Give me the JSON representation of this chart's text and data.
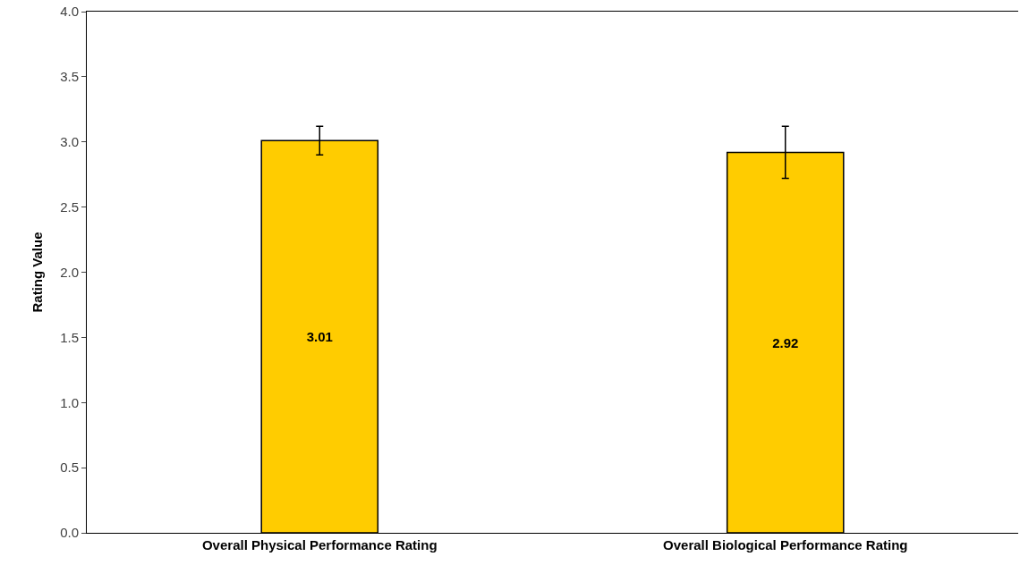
{
  "chart_data": {
    "type": "bar",
    "ylabel": "Rating Value",
    "categories": [
      "Overall Physical Performance Rating",
      "Overall Biological Performance Rating"
    ],
    "values": [
      3.01,
      2.92
    ],
    "color": "#ffcc00",
    "errors": [
      0.11,
      0.2
    ],
    "data_labels": true,
    "ylim": [
      0,
      4
    ],
    "yticks": [
      {
        "value": 0,
        "label": "0.0"
      },
      {
        "value": 0.5,
        "label": "0.5"
      },
      {
        "value": 1,
        "label": "1.0"
      },
      {
        "value": 1.5,
        "label": "1.5"
      },
      {
        "value": 2,
        "label": "2.0"
      },
      {
        "value": 2.5,
        "label": "2.5"
      },
      {
        "value": 3,
        "label": "3.0"
      },
      {
        "value": 3.5,
        "label": "3.5"
      },
      {
        "value": 4,
        "label": "4.0"
      }
    ],
    "tick_labels": true
  }
}
